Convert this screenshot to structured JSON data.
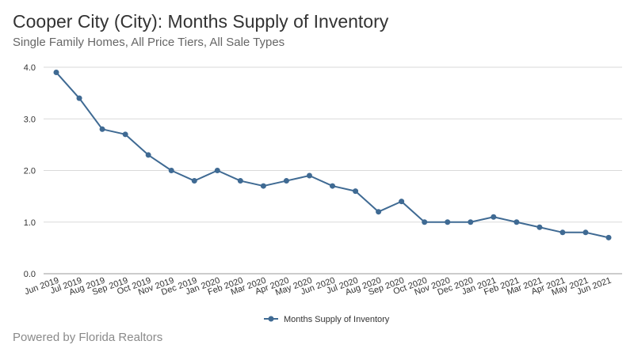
{
  "title": "Cooper City (City): Months Supply of Inventory",
  "subtitle": "Single Family Homes, All Price Tiers, All Sale Types",
  "footer": "Powered by Florida Realtors",
  "colors": {
    "line": "#3f6a93",
    "grid": "#d9d9d9",
    "axis": "#999999"
  },
  "chart_data": {
    "type": "line",
    "title": "Cooper City (City): Months Supply of Inventory",
    "xlabel": "",
    "ylabel": "",
    "ylim": [
      0,
      4
    ],
    "yticks": [
      "0.0",
      "1.0",
      "2.0",
      "3.0",
      "4.0"
    ],
    "grid": true,
    "legend_position": "bottom-center",
    "categories": [
      "Jun 2019",
      "Jul 2019",
      "Aug 2019",
      "Sep 2019",
      "Oct 2019",
      "Nov 2019",
      "Dec 2019",
      "Jan 2020",
      "Feb 2020",
      "Mar 2020",
      "Apr 2020",
      "May 2020",
      "Jun 2020",
      "Jul 2020",
      "Aug 2020",
      "Sep 2020",
      "Oct 2020",
      "Nov 2020",
      "Dec 2020",
      "Jan 2021",
      "Feb 2021",
      "Mar 2021",
      "Apr 2021",
      "May 2021",
      "Jun 2021"
    ],
    "series": [
      {
        "name": "Months Supply of Inventory",
        "values": [
          3.9,
          3.4,
          2.8,
          2.7,
          2.3,
          2.0,
          1.8,
          2.0,
          1.8,
          1.7,
          1.8,
          1.9,
          1.7,
          1.6,
          1.2,
          1.4,
          1.0,
          1.0,
          1.0,
          1.1,
          1.0,
          0.9,
          0.8,
          0.8,
          0.7
        ]
      }
    ]
  }
}
